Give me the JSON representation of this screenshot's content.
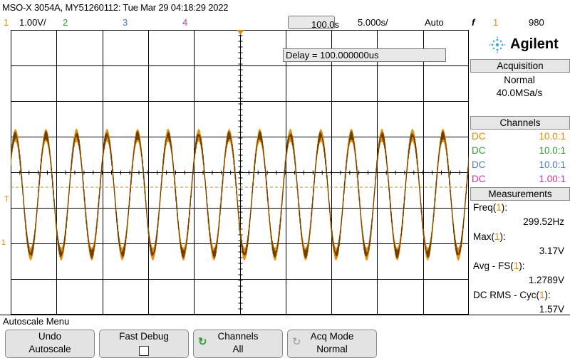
{
  "title": "MSO-X 3054A, MY51260112: Tue Mar 29 04:18:29 2022",
  "settings": {
    "ch1_num": "1",
    "ch1_scale": "1.00V/",
    "ch2_num": "2",
    "ch3_num": "3",
    "ch4_num": "4",
    "timebase_delay": "100.0s",
    "time_per_div": "5.000s/",
    "trigger_mode": "Auto",
    "trigger_slope_symbol": "f",
    "trigger_source": "1",
    "trigger_level": "980"
  },
  "delay_box": "Delay = 100.000000us",
  "brand": {
    "name": "Agilent"
  },
  "acquisition": {
    "header": "Acquisition",
    "mode": "Normal",
    "rate": "40.0MSa/s"
  },
  "channels": {
    "header": "Channels",
    "rows": [
      {
        "coupling": "DC",
        "probe": "10.0:1",
        "color": "#e08a00"
      },
      {
        "coupling": "DC",
        "probe": "10.0:1",
        "color": "#2ca02c"
      },
      {
        "coupling": "DC",
        "probe": "10.0:1",
        "color": "#4a78c8"
      },
      {
        "coupling": "DC",
        "probe": "1.00:1",
        "color": "#d0309a"
      }
    ]
  },
  "measurements": {
    "header": "Measurements",
    "items": [
      {
        "label": "Freq",
        "src": "1",
        "value": "299.52Hz"
      },
      {
        "label": "Max",
        "src": "1",
        "value": "3.17V"
      },
      {
        "label": "Avg - FS",
        "src": "1",
        "value": "1.2789V"
      },
      {
        "label": "DC RMS - Cyc",
        "src": "1",
        "value": "1.57V"
      }
    ]
  },
  "menu": {
    "title": "Autoscale Menu",
    "keys": [
      {
        "l1": "Undo",
        "l2": "Autoscale"
      },
      {
        "l1": "Fast Debug",
        "l2": ""
      },
      {
        "l1": "Channels",
        "l2": "All"
      },
      {
        "l1": "Acq Mode",
        "l2": "Normal"
      }
    ]
  },
  "markers": {
    "trigger_level": "T",
    "ground_ch1": "1"
  },
  "waveform": {
    "cycles_visible": 15,
    "color": "#e08a00"
  }
}
